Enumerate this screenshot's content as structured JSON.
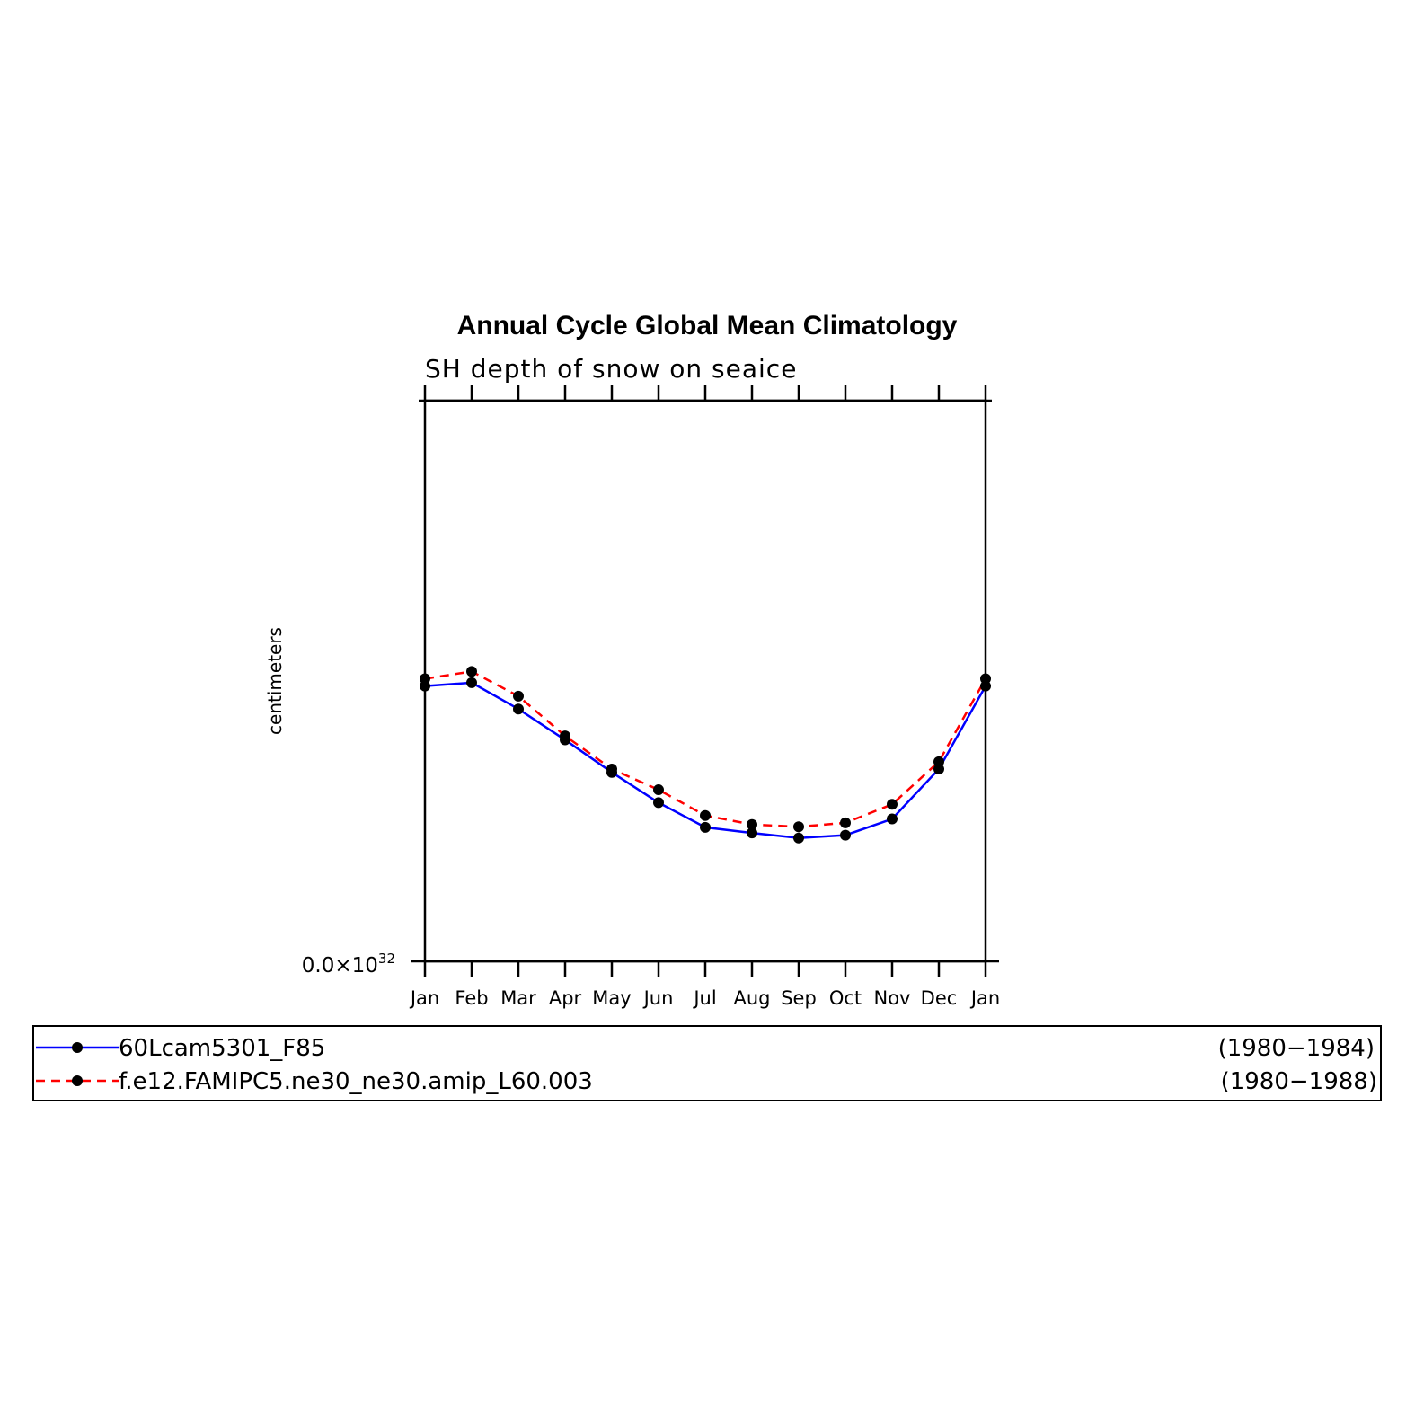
{
  "chart_data": {
    "type": "line",
    "title": "Annual Cycle Global Mean Climatology",
    "subtitle": "SH depth of snow on seaice",
    "ylabel": "centimeters",
    "y_tick_label": {
      "base": "0.0×10",
      "exp": "32"
    },
    "ylim": [
      0,
      100
    ],
    "categories": [
      "Jan",
      "Feb",
      "Mar",
      "Apr",
      "May",
      "Jun",
      "Jul",
      "Aug",
      "Sep",
      "Oct",
      "Nov",
      "Dec",
      "Jan"
    ],
    "series": [
      {
        "name": "60Lcam5301_F85",
        "years": "(1980−1984)",
        "color": "#0000ff",
        "dash": "solid",
        "values": [
          49.1,
          49.7,
          45.0,
          39.5,
          33.7,
          28.3,
          23.9,
          22.9,
          22.0,
          22.5,
          25.4,
          34.3,
          49.1
        ]
      },
      {
        "name": "f.e12.FAMIPC5.ne30_ne30.amip_L60.003",
        "years": "(1980−1988)",
        "color": "#ff0000",
        "dash": "dashed",
        "values": [
          50.4,
          51.7,
          47.3,
          40.2,
          34.3,
          30.6,
          26.0,
          24.4,
          24.0,
          24.7,
          28.0,
          35.6,
          50.4
        ]
      }
    ],
    "grid": false,
    "legend_position": "bottom"
  }
}
